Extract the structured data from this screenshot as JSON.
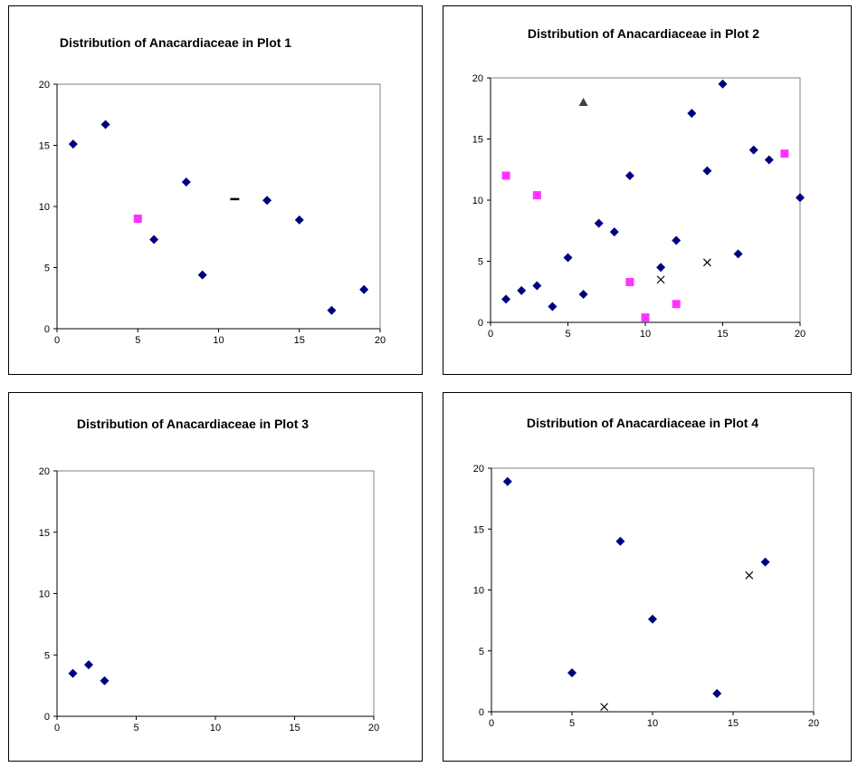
{
  "colors": {
    "diamond": "#00007f",
    "square": "#ff33ff",
    "triangle": "#404040",
    "dash": "#000000",
    "cross": "#000000"
  },
  "chart_data": [
    {
      "type": "scatter",
      "title": "Distribution of Anacardiaceae in Plot 1",
      "xlim": [
        0,
        20
      ],
      "ylim": [
        0,
        20
      ],
      "xticks": [
        "0",
        "5",
        "10",
        "15",
        "20"
      ],
      "yticks": [
        "0",
        "5",
        "10",
        "15",
        "20"
      ],
      "grid": false,
      "series": [
        {
          "marker": "diamond",
          "points": [
            [
              1,
              15.1
            ],
            [
              3,
              16.7
            ],
            [
              6,
              7.3
            ],
            [
              8,
              12
            ],
            [
              9,
              4.4
            ],
            [
              13,
              10.5
            ],
            [
              15,
              8.9
            ],
            [
              17,
              1.5
            ],
            [
              19,
              3.2
            ]
          ]
        },
        {
          "marker": "square",
          "points": [
            [
              5,
              9
            ]
          ]
        },
        {
          "marker": "dash",
          "points": [
            [
              11,
              10.6
            ]
          ]
        }
      ]
    },
    {
      "type": "scatter",
      "title": "Distribution of Anacardiaceae in Plot 2",
      "xlim": [
        0,
        20
      ],
      "ylim": [
        0,
        20
      ],
      "xticks": [
        "0",
        "5",
        "10",
        "15",
        "20"
      ],
      "yticks": [
        "0",
        "5",
        "10",
        "15",
        "20"
      ],
      "grid": false,
      "series": [
        {
          "marker": "diamond",
          "points": [
            [
              1,
              1.9
            ],
            [
              2,
              2.6
            ],
            [
              3,
              3
            ],
            [
              4,
              1.3
            ],
            [
              5,
              5.3
            ],
            [
              6,
              2.3
            ],
            [
              7,
              8.1
            ],
            [
              8,
              7.4
            ],
            [
              9,
              12
            ],
            [
              11,
              4.5
            ],
            [
              12,
              6.7
            ],
            [
              13,
              17.1
            ],
            [
              14,
              12.4
            ],
            [
              15,
              19.5
            ],
            [
              16,
              5.6
            ],
            [
              17,
              14.1
            ],
            [
              18,
              13.3
            ],
            [
              20,
              10.2
            ]
          ]
        },
        {
          "marker": "square",
          "points": [
            [
              1,
              12
            ],
            [
              3,
              10.4
            ],
            [
              9,
              3.3
            ],
            [
              10,
              0.4
            ],
            [
              12,
              1.5
            ],
            [
              19,
              13.8
            ]
          ]
        },
        {
          "marker": "triangle",
          "points": [
            [
              6,
              18
            ]
          ]
        },
        {
          "marker": "cross",
          "points": [
            [
              11,
              3.5
            ],
            [
              14,
              4.9
            ]
          ]
        }
      ]
    },
    {
      "type": "scatter",
      "title": "Distribution of Anacardiaceae in Plot 3",
      "xlim": [
        0,
        20
      ],
      "ylim": [
        0,
        20
      ],
      "xticks": [
        "0",
        "5",
        "10",
        "15",
        "20"
      ],
      "yticks": [
        "0",
        "5",
        "10",
        "15",
        "20"
      ],
      "grid": false,
      "series": [
        {
          "marker": "diamond",
          "points": [
            [
              1,
              3.5
            ],
            [
              2,
              4.2
            ],
            [
              3,
              2.9
            ]
          ]
        }
      ]
    },
    {
      "type": "scatter",
      "title": "Distribution of Anacardiaceae in Plot 4",
      "xlim": [
        0,
        20
      ],
      "ylim": [
        0,
        20
      ],
      "xticks": [
        "0",
        "5",
        "10",
        "15",
        "20"
      ],
      "yticks": [
        "0",
        "5",
        "10",
        "15",
        "20"
      ],
      "grid": false,
      "series": [
        {
          "marker": "diamond",
          "points": [
            [
              1,
              18.9
            ],
            [
              5,
              3.2
            ],
            [
              8,
              14
            ],
            [
              10,
              7.6
            ],
            [
              14,
              1.5
            ],
            [
              17,
              12.3
            ]
          ]
        },
        {
          "marker": "cross",
          "points": [
            [
              7,
              0.4
            ],
            [
              16,
              11.2
            ]
          ]
        }
      ]
    }
  ]
}
